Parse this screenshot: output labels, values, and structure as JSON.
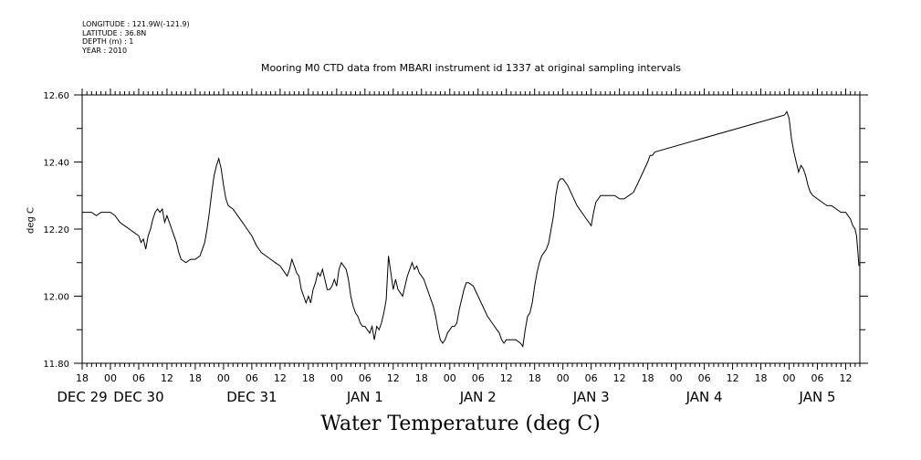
{
  "meta": {
    "longitude": "LONGITUDE : 121.9W(-121.9)",
    "latitude": "LATITUDE : 36.8N",
    "depth": "DEPTH (m) : 1",
    "year": "YEAR : 2010"
  },
  "footer_title": "Water Temperature (deg C)",
  "chart_data": {
    "type": "line",
    "title": "Mooring M0 CTD data from MBARI instrument id 1337 at original sampling intervals",
    "ylabel": "deg C",
    "xlabel": "",
    "ylim": [
      11.8,
      12.6
    ],
    "yticks": [
      "12.60",
      "12.40",
      "12.20",
      "12.00",
      "11.80"
    ],
    "xlim_hours": [
      -6,
      159
    ],
    "hour_ticks": [
      {
        "h": -6,
        "label": "18"
      },
      {
        "h": 0,
        "label": "00"
      },
      {
        "h": 6,
        "label": "06"
      },
      {
        "h": 12,
        "label": "12"
      },
      {
        "h": 18,
        "label": "18"
      },
      {
        "h": 24,
        "label": "00"
      },
      {
        "h": 30,
        "label": "06"
      },
      {
        "h": 36,
        "label": "12"
      },
      {
        "h": 42,
        "label": "18"
      },
      {
        "h": 48,
        "label": "00"
      },
      {
        "h": 54,
        "label": "06"
      },
      {
        "h": 60,
        "label": "12"
      },
      {
        "h": 66,
        "label": "18"
      },
      {
        "h": 72,
        "label": "00"
      },
      {
        "h": 78,
        "label": "06"
      },
      {
        "h": 84,
        "label": "12"
      },
      {
        "h": 90,
        "label": "18"
      },
      {
        "h": 96,
        "label": "00"
      },
      {
        "h": 102,
        "label": "06"
      },
      {
        "h": 108,
        "label": "12"
      },
      {
        "h": 114,
        "label": "18"
      },
      {
        "h": 120,
        "label": "00"
      },
      {
        "h": 126,
        "label": "06"
      },
      {
        "h": 132,
        "label": "12"
      },
      {
        "h": 138,
        "label": "18"
      },
      {
        "h": 144,
        "label": "00"
      },
      {
        "h": 150,
        "label": "06"
      },
      {
        "h": 156,
        "label": "12"
      }
    ],
    "date_ticks": [
      {
        "h": -6,
        "label": "DEC 29"
      },
      {
        "h": 6,
        "label": "DEC 30"
      },
      {
        "h": 30,
        "label": "DEC 31"
      },
      {
        "h": 54,
        "label": "JAN  1"
      },
      {
        "h": 78,
        "label": "JAN  2"
      },
      {
        "h": 102,
        "label": "JAN  3"
      },
      {
        "h": 126,
        "label": "JAN  4"
      },
      {
        "h": 150,
        "label": "JAN  5"
      }
    ],
    "series": [
      {
        "color": "#000000",
        "points": [
          [
            -6.0,
            12.25
          ],
          [
            -5.0,
            12.25
          ],
          [
            -4.0,
            12.25
          ],
          [
            -3.0,
            12.24
          ],
          [
            -2.0,
            12.25
          ],
          [
            -1.0,
            12.25
          ],
          [
            0.0,
            12.25
          ],
          [
            1.0,
            12.24
          ],
          [
            2.0,
            12.22
          ],
          [
            3.0,
            12.21
          ],
          [
            4.0,
            12.2
          ],
          [
            5.0,
            12.19
          ],
          [
            6.0,
            12.18
          ],
          [
            6.5,
            12.16
          ],
          [
            7.0,
            12.17
          ],
          [
            7.5,
            12.14
          ],
          [
            8.0,
            12.18
          ],
          [
            8.5,
            12.2
          ],
          [
            9.0,
            12.23
          ],
          [
            9.5,
            12.25
          ],
          [
            10.0,
            12.26
          ],
          [
            10.5,
            12.25
          ],
          [
            11.0,
            12.26
          ],
          [
            11.5,
            12.22
          ],
          [
            12.0,
            12.24
          ],
          [
            12.5,
            12.22
          ],
          [
            13.0,
            12.2
          ],
          [
            13.5,
            12.18
          ],
          [
            14.0,
            12.16
          ],
          [
            14.5,
            12.13
          ],
          [
            15.0,
            12.11
          ],
          [
            16.0,
            12.1
          ],
          [
            17.0,
            12.11
          ],
          [
            18.0,
            12.11
          ],
          [
            19.0,
            12.12
          ],
          [
            20.0,
            12.16
          ],
          [
            20.5,
            12.2
          ],
          [
            21.0,
            12.25
          ],
          [
            21.5,
            12.31
          ],
          [
            22.0,
            12.36
          ],
          [
            22.5,
            12.39
          ],
          [
            23.0,
            12.41
          ],
          [
            23.5,
            12.38
          ],
          [
            24.0,
            12.33
          ],
          [
            24.5,
            12.29
          ],
          [
            25.0,
            12.27
          ],
          [
            26.0,
            12.26
          ],
          [
            27.0,
            12.24
          ],
          [
            28.0,
            12.22
          ],
          [
            29.0,
            12.2
          ],
          [
            30.0,
            12.18
          ],
          [
            31.0,
            12.15
          ],
          [
            32.0,
            12.13
          ],
          [
            33.0,
            12.12
          ],
          [
            34.0,
            12.11
          ],
          [
            35.0,
            12.1
          ],
          [
            36.0,
            12.09
          ],
          [
            37.0,
            12.07
          ],
          [
            37.5,
            12.06
          ],
          [
            38.0,
            12.08
          ],
          [
            38.5,
            12.11
          ],
          [
            39.0,
            12.09
          ],
          [
            39.5,
            12.07
          ],
          [
            40.0,
            12.06
          ],
          [
            40.5,
            12.02
          ],
          [
            41.0,
            12.0
          ],
          [
            41.5,
            11.98
          ],
          [
            42.0,
            12.0
          ],
          [
            42.5,
            11.98
          ],
          [
            43.0,
            12.02
          ],
          [
            43.5,
            12.04
          ],
          [
            44.0,
            12.07
          ],
          [
            44.5,
            12.06
          ],
          [
            45.0,
            12.08
          ],
          [
            45.5,
            12.05
          ],
          [
            46.0,
            12.02
          ],
          [
            46.5,
            12.02
          ],
          [
            47.0,
            12.03
          ],
          [
            47.5,
            12.05
          ],
          [
            48.0,
            12.03
          ],
          [
            48.5,
            12.08
          ],
          [
            49.0,
            12.1
          ],
          [
            49.5,
            12.09
          ],
          [
            50.0,
            12.08
          ],
          [
            50.5,
            12.05
          ],
          [
            51.0,
            12.0
          ],
          [
            51.5,
            11.97
          ],
          [
            52.0,
            11.95
          ],
          [
            52.5,
            11.94
          ],
          [
            53.0,
            11.92
          ],
          [
            53.5,
            11.91
          ],
          [
            54.0,
            11.91
          ],
          [
            54.5,
            11.9
          ],
          [
            55.0,
            11.89
          ],
          [
            55.5,
            11.91
          ],
          [
            56.0,
            11.87
          ],
          [
            56.5,
            11.91
          ],
          [
            57.0,
            11.9
          ],
          [
            57.5,
            11.92
          ],
          [
            58.0,
            11.95
          ],
          [
            58.5,
            11.99
          ],
          [
            59.0,
            12.12
          ],
          [
            59.5,
            12.07
          ],
          [
            60.0,
            12.02
          ],
          [
            60.5,
            12.05
          ],
          [
            61.0,
            12.02
          ],
          [
            61.5,
            12.01
          ],
          [
            62.0,
            12.0
          ],
          [
            62.5,
            12.03
          ],
          [
            63.0,
            12.06
          ],
          [
            63.5,
            12.08
          ],
          [
            64.0,
            12.1
          ],
          [
            64.5,
            12.08
          ],
          [
            65.0,
            12.09
          ],
          [
            65.5,
            12.07
          ],
          [
            66.0,
            12.06
          ],
          [
            66.5,
            12.05
          ],
          [
            67.0,
            12.03
          ],
          [
            67.5,
            12.01
          ],
          [
            68.0,
            11.99
          ],
          [
            68.5,
            11.97
          ],
          [
            69.0,
            11.94
          ],
          [
            69.5,
            11.9
          ],
          [
            70.0,
            11.87
          ],
          [
            70.5,
            11.86
          ],
          [
            71.0,
            11.87
          ],
          [
            71.5,
            11.89
          ],
          [
            72.0,
            11.9
          ],
          [
            72.5,
            11.91
          ],
          [
            73.0,
            11.91
          ],
          [
            73.5,
            11.92
          ],
          [
            74.0,
            11.96
          ],
          [
            74.5,
            11.99
          ],
          [
            75.0,
            12.02
          ],
          [
            75.5,
            12.04
          ],
          [
            76.0,
            12.04
          ],
          [
            77.0,
            12.03
          ],
          [
            78.0,
            12.0
          ],
          [
            79.0,
            11.97
          ],
          [
            80.0,
            11.94
          ],
          [
            81.0,
            11.92
          ],
          [
            82.0,
            11.9
          ],
          [
            82.5,
            11.89
          ],
          [
            83.0,
            11.87
          ],
          [
            83.5,
            11.86
          ],
          [
            84.0,
            11.87
          ],
          [
            85.0,
            11.87
          ],
          [
            86.0,
            11.87
          ],
          [
            87.0,
            11.86
          ],
          [
            87.5,
            11.85
          ],
          [
            88.0,
            11.9
          ],
          [
            88.5,
            11.94
          ],
          [
            89.0,
            11.95
          ],
          [
            89.5,
            11.98
          ],
          [
            90.0,
            12.03
          ],
          [
            90.5,
            12.07
          ],
          [
            91.0,
            12.1
          ],
          [
            91.5,
            12.12
          ],
          [
            92.0,
            12.13
          ],
          [
            92.5,
            12.14
          ],
          [
            93.0,
            12.16
          ],
          [
            93.5,
            12.2
          ],
          [
            94.0,
            12.24
          ],
          [
            94.5,
            12.3
          ],
          [
            95.0,
            12.34
          ],
          [
            95.5,
            12.35
          ],
          [
            96.0,
            12.35
          ],
          [
            97.0,
            12.33
          ],
          [
            98.0,
            12.3
          ],
          [
            99.0,
            12.27
          ],
          [
            100.0,
            12.25
          ],
          [
            101.0,
            12.23
          ],
          [
            101.5,
            12.22
          ],
          [
            102.0,
            12.21
          ],
          [
            102.5,
            12.25
          ],
          [
            103.0,
            12.28
          ],
          [
            103.5,
            12.29
          ],
          [
            104.0,
            12.3
          ],
          [
            105.0,
            12.3
          ],
          [
            106.0,
            12.3
          ],
          [
            107.0,
            12.3
          ],
          [
            108.0,
            12.29
          ],
          [
            109.0,
            12.29
          ],
          [
            110.0,
            12.3
          ],
          [
            111.0,
            12.31
          ],
          [
            112.0,
            12.34
          ],
          [
            113.0,
            12.37
          ],
          [
            114.0,
            12.4
          ],
          [
            114.5,
            12.42
          ],
          [
            115.0,
            12.42
          ],
          [
            115.5,
            12.43
          ],
          [
            143.0,
            12.54
          ],
          [
            143.5,
            12.55
          ],
          [
            144.0,
            12.53
          ],
          [
            144.5,
            12.47
          ],
          [
            145.0,
            12.43
          ],
          [
            145.5,
            12.4
          ],
          [
            146.0,
            12.37
          ],
          [
            146.5,
            12.39
          ],
          [
            147.0,
            12.38
          ],
          [
            147.5,
            12.36
          ],
          [
            148.0,
            12.33
          ],
          [
            148.5,
            12.31
          ],
          [
            149.0,
            12.3
          ],
          [
            150.0,
            12.29
          ],
          [
            151.0,
            12.28
          ],
          [
            152.0,
            12.27
          ],
          [
            153.0,
            12.27
          ],
          [
            154.0,
            12.26
          ],
          [
            155.0,
            12.25
          ],
          [
            156.0,
            12.25
          ],
          [
            157.0,
            12.23
          ],
          [
            157.5,
            12.21
          ],
          [
            158.0,
            12.2
          ],
          [
            158.3,
            12.18
          ],
          [
            158.6,
            12.13
          ],
          [
            158.8,
            12.09
          ]
        ]
      }
    ]
  }
}
